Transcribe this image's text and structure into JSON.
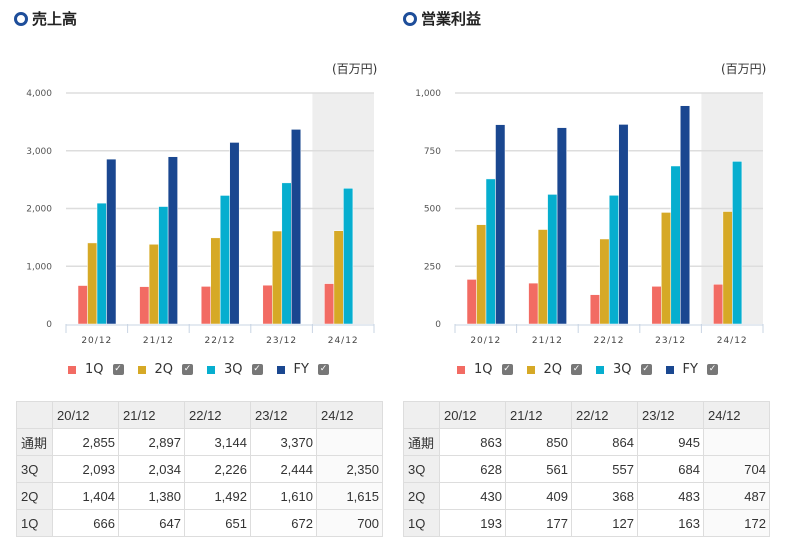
{
  "colors": {
    "1Q": "#f26b63",
    "2Q": "#d6a926",
    "3Q": "#06aecf",
    "FY": "#1a4790",
    "forecast_bg": "#eeeeee"
  },
  "legend": [
    {
      "label": "1Q",
      "key": "1Q"
    },
    {
      "label": "2Q",
      "key": "2Q"
    },
    {
      "label": "3Q",
      "key": "3Q"
    },
    {
      "label": "FY",
      "key": "FY"
    }
  ],
  "checkbox_icon": "check-icon",
  "chart_data": [
    {
      "type": "bar",
      "title": "売上高",
      "unit": "(百万円)",
      "categories": [
        "20/12",
        "21/12",
        "22/12",
        "23/12",
        "24/12"
      ],
      "ylim": [
        0,
        4000
      ],
      "yticks": [
        "0",
        "1,000",
        "2,000",
        "3,000",
        "4,000"
      ],
      "ytick_values": [
        0,
        1000,
        2000,
        3000,
        4000
      ],
      "series": [
        {
          "name": "1Q",
          "values": [
            666,
            647,
            651,
            672,
            700
          ]
        },
        {
          "name": "2Q",
          "values": [
            1404,
            1380,
            1492,
            1610,
            1615
          ]
        },
        {
          "name": "3Q",
          "values": [
            2093,
            2034,
            2226,
            2444,
            2350
          ]
        },
        {
          "name": "FY",
          "values": [
            2855,
            2897,
            3144,
            3370,
            null
          ]
        }
      ],
      "table": {
        "rows": [
          {
            "label": "通期",
            "cells": [
              "2,855",
              "2,897",
              "3,144",
              "3,370",
              ""
            ]
          },
          {
            "label": "3Q",
            "cells": [
              "2,093",
              "2,034",
              "2,226",
              "2,444",
              "2,350"
            ]
          },
          {
            "label": "2Q",
            "cells": [
              "1,404",
              "1,380",
              "1,492",
              "1,610",
              "1,615"
            ]
          },
          {
            "label": "1Q",
            "cells": [
              "666",
              "647",
              "651",
              "672",
              "700"
            ]
          }
        ]
      }
    },
    {
      "type": "bar",
      "title": "営業利益",
      "unit": "(百万円)",
      "categories": [
        "20/12",
        "21/12",
        "22/12",
        "23/12",
        "24/12"
      ],
      "ylim": [
        0,
        1000
      ],
      "yticks": [
        "0",
        "250",
        "500",
        "750",
        "1,000"
      ],
      "ytick_values": [
        0,
        250,
        500,
        750,
        1000
      ],
      "series": [
        {
          "name": "1Q",
          "values": [
            193,
            177,
            127,
            163,
            172
          ]
        },
        {
          "name": "2Q",
          "values": [
            430,
            409,
            368,
            483,
            487
          ]
        },
        {
          "name": "3Q",
          "values": [
            628,
            561,
            557,
            684,
            704
          ]
        },
        {
          "name": "FY",
          "values": [
            863,
            850,
            864,
            945,
            null
          ]
        }
      ],
      "table": {
        "rows": [
          {
            "label": "通期",
            "cells": [
              "863",
              "850",
              "864",
              "945",
              ""
            ]
          },
          {
            "label": "3Q",
            "cells": [
              "628",
              "561",
              "557",
              "684",
              "704"
            ]
          },
          {
            "label": "2Q",
            "cells": [
              "430",
              "409",
              "368",
              "483",
              "487"
            ]
          },
          {
            "label": "1Q",
            "cells": [
              "193",
              "177",
              "127",
              "163",
              "172"
            ]
          }
        ]
      }
    }
  ]
}
